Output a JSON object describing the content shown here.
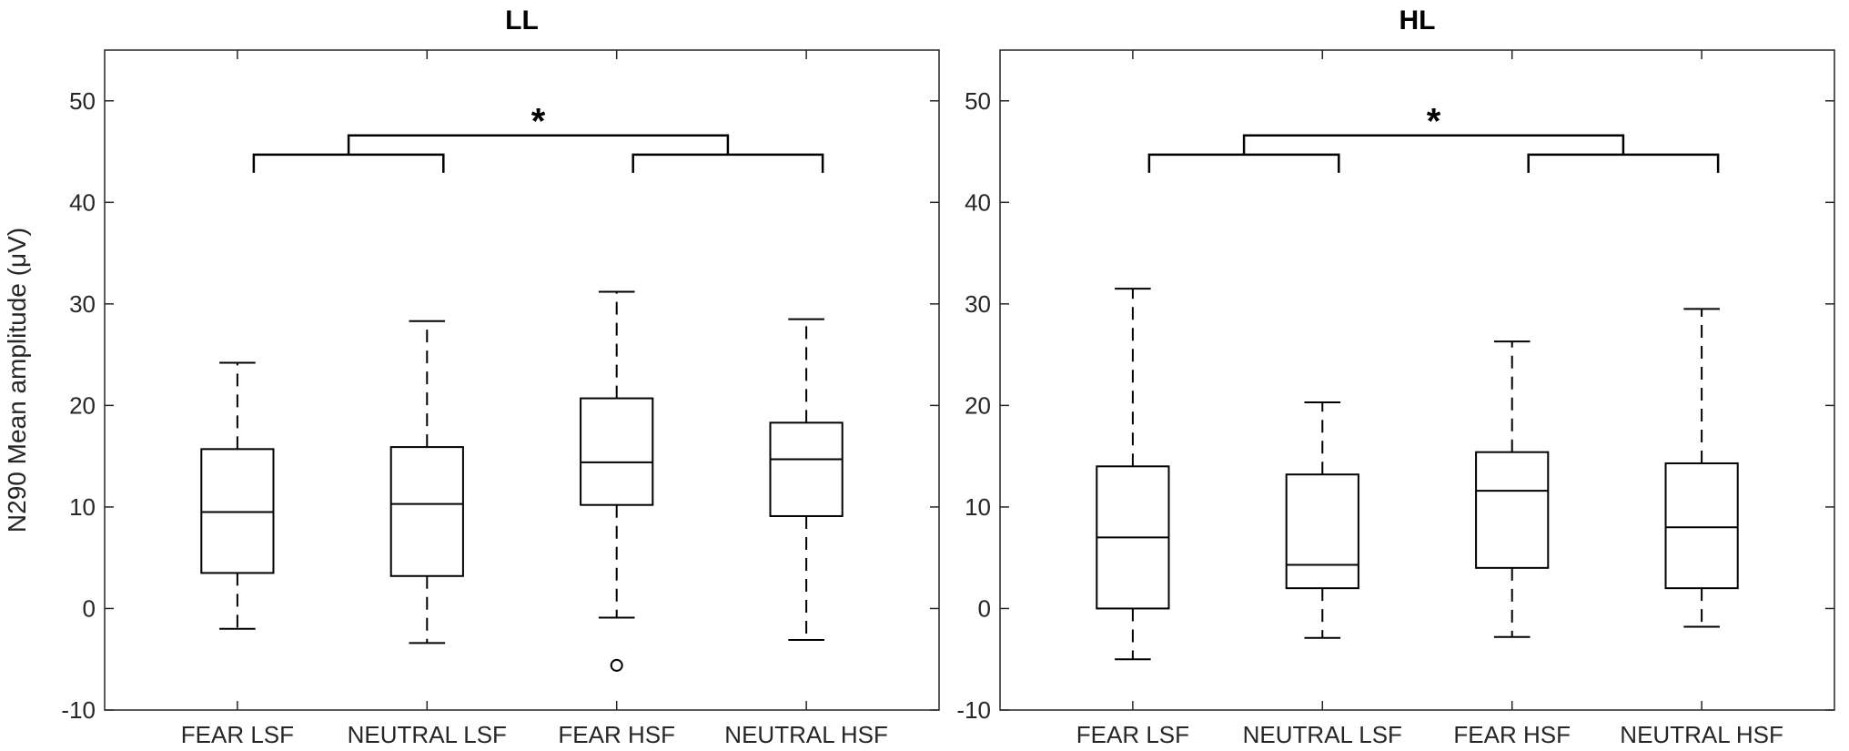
{
  "chart_data": [
    {
      "type": "box",
      "title": "LL",
      "ylabel": "N290 Mean amplitude (μV)",
      "ylim": [
        -10,
        55
      ],
      "yticks": [
        -10,
        0,
        10,
        20,
        30,
        40,
        50
      ],
      "categories": [
        "FEAR LSF",
        "NEUTRAL LSF",
        "FEAR HSF",
        "NEUTRAL HSF"
      ],
      "boxes": [
        {
          "whisker_low": -2.0,
          "q1": 3.5,
          "median": 9.5,
          "q3": 15.7,
          "whisker_high": 24.2,
          "outliers": []
        },
        {
          "whisker_low": -3.4,
          "q1": 3.2,
          "median": 10.3,
          "q3": 15.9,
          "whisker_high": 28.3,
          "outliers": []
        },
        {
          "whisker_low": -0.9,
          "q1": 10.2,
          "median": 14.4,
          "q3": 20.7,
          "whisker_high": 31.2,
          "outliers": [
            -5.6
          ]
        },
        {
          "whisker_low": -3.1,
          "q1": 9.1,
          "median": 14.7,
          "q3": 18.3,
          "whisker_high": 28.5,
          "outliers": []
        }
      ],
      "significance": {
        "label": "*",
        "groups": [
          [
            0,
            1
          ],
          [
            2,
            3
          ]
        ]
      }
    },
    {
      "type": "box",
      "title": "HL",
      "ylabel": "",
      "ylim": [
        -10,
        55
      ],
      "yticks": [
        -10,
        0,
        10,
        20,
        30,
        40,
        50
      ],
      "categories": [
        "FEAR LSF",
        "NEUTRAL LSF",
        "FEAR HSF",
        "NEUTRAL HSF"
      ],
      "boxes": [
        {
          "whisker_low": -5.0,
          "q1": 0.0,
          "median": 7.0,
          "q3": 14.0,
          "whisker_high": 31.5,
          "outliers": []
        },
        {
          "whisker_low": -2.9,
          "q1": 2.0,
          "median": 4.3,
          "q3": 13.2,
          "whisker_high": 20.3,
          "outliers": []
        },
        {
          "whisker_low": -2.8,
          "q1": 4.0,
          "median": 11.6,
          "q3": 15.4,
          "whisker_high": 26.3,
          "outliers": []
        },
        {
          "whisker_low": -1.8,
          "q1": 2.0,
          "median": 8.0,
          "q3": 14.3,
          "whisker_high": 29.5,
          "outliers": []
        }
      ],
      "significance": {
        "label": "*",
        "groups": [
          [
            0,
            1
          ],
          [
            2,
            3
          ]
        ]
      }
    }
  ]
}
